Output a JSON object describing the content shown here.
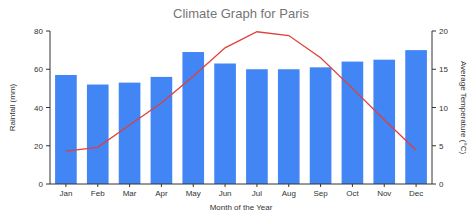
{
  "chart_data": {
    "type": "bar",
    "title": "Climate Graph for Paris",
    "x_label": "Month of the Year",
    "y_label": "Rainfall (mm)",
    "y2_label": "Average Temperature (°C)",
    "categories": [
      "Jan",
      "Feb",
      "Mar",
      "Apr",
      "May",
      "Jun",
      "Jul",
      "Aug",
      "Sep",
      "Oct",
      "Nov",
      "Dec"
    ],
    "series": [
      {
        "type": "bar",
        "color": "#4285f4",
        "axis": "y",
        "values": [
          57,
          52,
          53,
          56,
          69,
          63,
          60,
          60,
          61,
          64,
          65,
          70
        ]
      },
      {
        "type": "line",
        "color": "#e0403a",
        "axis": "y2",
        "values": [
          4.3,
          4.8,
          7.7,
          10.6,
          14.1,
          17.8,
          19.9,
          19.4,
          16.5,
          12.5,
          8.4,
          4.4
        ]
      }
    ],
    "ylim": [
      0,
      80
    ],
    "yticks": [
      0,
      20,
      40,
      60,
      80
    ],
    "y2lim": [
      0,
      20
    ],
    "y2ticks": [
      0,
      5,
      10,
      15,
      20
    ],
    "grid": false
  }
}
